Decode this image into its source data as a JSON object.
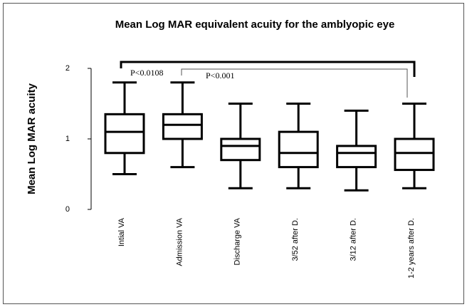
{
  "chart_data": {
    "type": "box",
    "title": "Mean Log MAR equivalent acuity for the amblyopic eye",
    "y_label": "Mean Log MAR acuity",
    "categories": [
      "Intial VA",
      "Admission VA",
      "Discharge VA",
      "3/52 after D.",
      "3/12 after D.",
      "1-2 years after D."
    ],
    "boxes": [
      {
        "min": 0.5,
        "q1": 0.8,
        "median": 1.1,
        "q3": 1.35,
        "max": 1.8
      },
      {
        "min": 0.6,
        "q1": 1.0,
        "median": 1.2,
        "q3": 1.35,
        "max": 1.8
      },
      {
        "min": 0.3,
        "q1": 0.7,
        "median": 0.9,
        "q3": 1.0,
        "max": 1.5
      },
      {
        "min": 0.3,
        "q1": 0.6,
        "median": 0.8,
        "q3": 1.1,
        "max": 1.5
      },
      {
        "min": 0.27,
        "q1": 0.6,
        "median": 0.8,
        "q3": 0.9,
        "max": 1.4
      },
      {
        "min": 0.3,
        "q1": 0.56,
        "median": 0.8,
        "q3": 1.0,
        "max": 1.5
      }
    ],
    "ylim": [
      0,
      2
    ],
    "yticks": [
      0,
      1,
      2
    ],
    "annotations": [
      "P<0.0108",
      "P<0.001"
    ]
  }
}
